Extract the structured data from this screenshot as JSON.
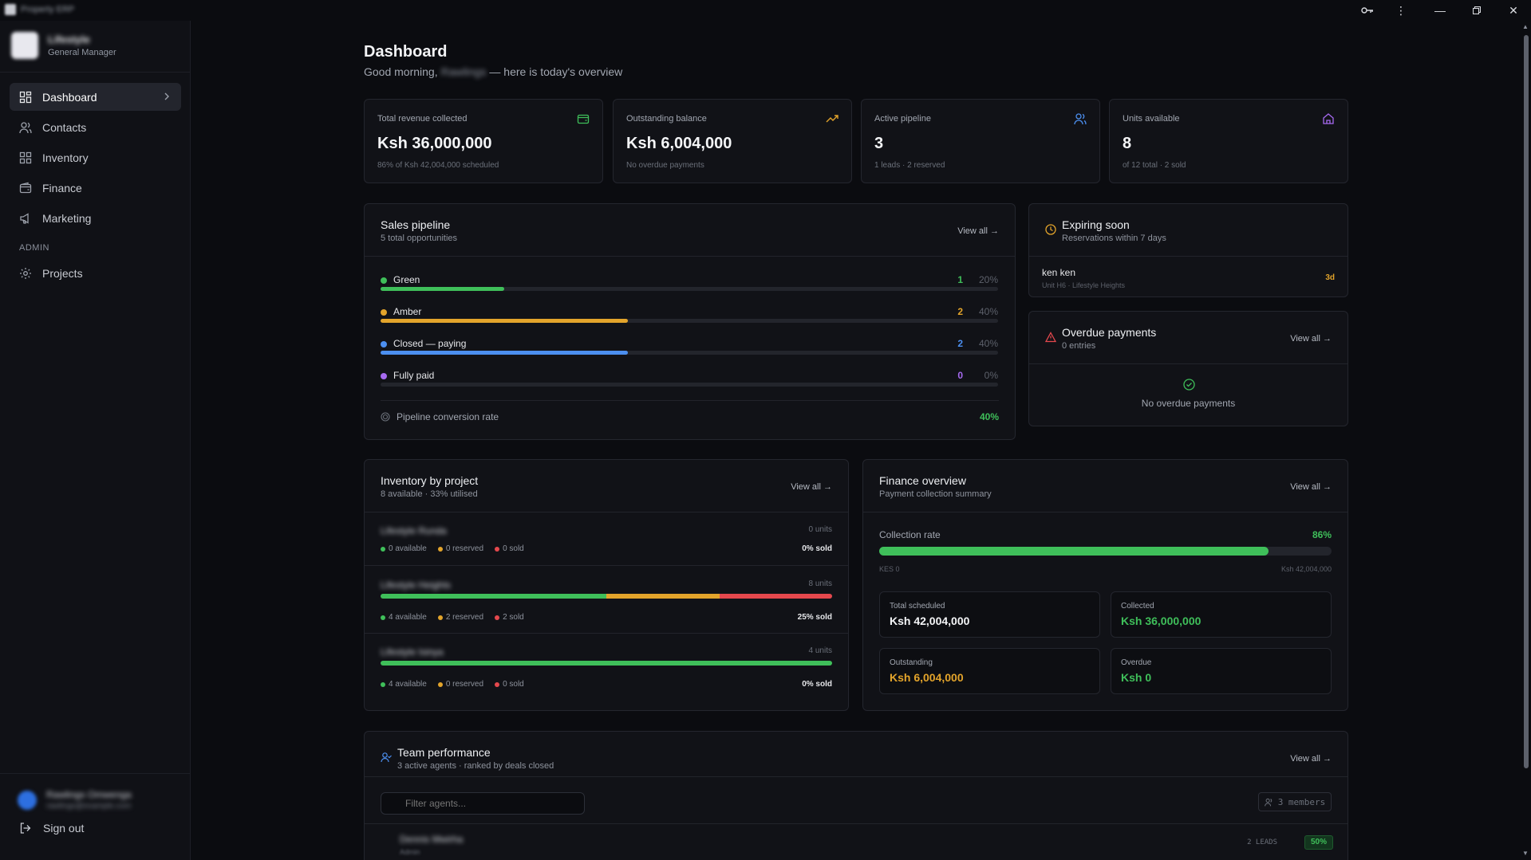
{
  "window": {
    "title": "Property ERP"
  },
  "sidebar": {
    "profile_name": "Lifestyle",
    "profile_role": "General Manager",
    "items": [
      {
        "label": "Dashboard",
        "icon": "grid-icon",
        "active": true
      },
      {
        "label": "Contacts",
        "icon": "users-icon"
      },
      {
        "label": "Inventory",
        "icon": "apps-icon"
      },
      {
        "label": "Finance",
        "icon": "wallet-icon"
      },
      {
        "label": "Marketing",
        "icon": "megaphone-icon"
      }
    ],
    "admin_label": "ADMIN",
    "admin_items": [
      {
        "label": "Projects",
        "icon": "gear-icon"
      }
    ],
    "user_name": "Rawlings Omwenga",
    "user_email": "rawlings@example.com",
    "sign_out": "Sign out"
  },
  "header": {
    "title": "Dashboard",
    "greeting_prefix": "Good morning,",
    "greeting_name": "Rawlings",
    "greeting_suffix": "— here is today's overview"
  },
  "stats": [
    {
      "label": "Total revenue collected",
      "value": "Ksh 36,000,000",
      "sub": "86% of Ksh 42,004,000 scheduled",
      "icon": "wallet-icon",
      "color": "#3fbf5a"
    },
    {
      "label": "Outstanding balance",
      "value": "Ksh 6,004,000",
      "sub": "No overdue payments",
      "icon": "trending-up-icon",
      "color": "#e3a42b"
    },
    {
      "label": "Active pipeline",
      "value": "3",
      "sub": "1 leads · 2 reserved",
      "icon": "users-icon",
      "color": "#4c8ff0"
    },
    {
      "label": "Units available",
      "value": "8",
      "sub": "of 12 total · 2 sold",
      "icon": "home-icon",
      "color": "#a66af0"
    }
  ],
  "pipeline": {
    "title": "Sales pipeline",
    "subtitle": "5 total opportunities",
    "view_all": "View all",
    "stages": [
      {
        "name": "Green",
        "count": "1",
        "pct": "20%",
        "fraction": 0.2,
        "color": "#3fbf5a"
      },
      {
        "name": "Amber",
        "count": "2",
        "pct": "40%",
        "fraction": 0.4,
        "color": "#e3a42b"
      },
      {
        "name": "Closed — paying",
        "count": "2",
        "pct": "40%",
        "fraction": 0.4,
        "color": "#4c8ff0"
      },
      {
        "name": "Fully paid",
        "count": "0",
        "pct": "0%",
        "fraction": 0,
        "color": "#a66af0"
      }
    ],
    "conversion_label": "Pipeline conversion rate",
    "conversion_value": "40%"
  },
  "expiring": {
    "title": "Expiring soon",
    "subtitle": "Reservations within 7 days",
    "item_name": "ken ken",
    "item_sub": "Unit H6 · Lifestyle Heights",
    "item_days": "3d"
  },
  "overdue": {
    "title": "Overdue payments",
    "subtitle": "0 entries",
    "view_all": "View all",
    "empty": "No overdue payments"
  },
  "inventory": {
    "title": "Inventory by project",
    "subtitle": "8 available · 33% utilised",
    "view_all": "View all",
    "projects": [
      {
        "name": "Lifestyle Runda",
        "units": "0 units",
        "available": "0 available",
        "reserved": "0 reserved",
        "sold": "0 sold",
        "sold_pct": "0% sold",
        "fractions": [
          0,
          0,
          0
        ]
      },
      {
        "name": "Lifestyle Heights",
        "units": "8 units",
        "available": "4 available",
        "reserved": "2 reserved",
        "sold": "2 sold",
        "sold_pct": "25% sold",
        "fractions": [
          0.5,
          0.25,
          0.25
        ]
      },
      {
        "name": "Lifestyle Isinya",
        "units": "4 units",
        "available": "4 available",
        "reserved": "0 reserved",
        "sold": "0 sold",
        "sold_pct": "0% sold",
        "fractions": [
          1,
          0,
          0
        ]
      }
    ]
  },
  "finance": {
    "title": "Finance overview",
    "subtitle": "Payment collection summary",
    "view_all": "View all",
    "rate_label": "Collection rate",
    "rate_value": "86%",
    "rate_fraction": 0.86,
    "min_label": "KES 0",
    "max_label": "Ksh 42,004,000",
    "boxes": [
      {
        "label": "Total scheduled",
        "value": "Ksh 42,004,000",
        "color": "#f4f5f7"
      },
      {
        "label": "Collected",
        "value": "Ksh 36,000,000",
        "color": "#3fbf5a"
      },
      {
        "label": "Outstanding",
        "value": "Ksh 6,004,000",
        "color": "#e3a42b"
      },
      {
        "label": "Overdue",
        "value": "Ksh 0",
        "color": "#3fbf5a"
      }
    ]
  },
  "team": {
    "title": "Team performance",
    "subtitle": "3 active agents · ranked by deals closed",
    "view_all": "View all",
    "filter_placeholder": "Filter agents...",
    "members": "3 members",
    "agent_name": "Dennis Mwirha",
    "agent_role": "Admin",
    "agent_leads": "2 LEADS",
    "agent_rate": "50%"
  },
  "colors": {
    "green": "#3fbf5a",
    "amber": "#e3a42b",
    "blue": "#4c8ff0",
    "purple": "#a66af0",
    "red": "#e5484d"
  }
}
